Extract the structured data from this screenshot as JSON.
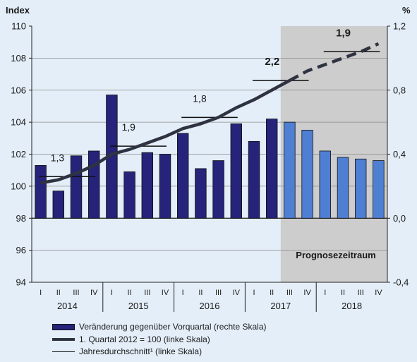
{
  "chart_data": {
    "type": "bar",
    "left_axis_label": "Index",
    "right_axis_label": "%",
    "left_ylim": [
      94,
      110
    ],
    "right_ylim": [
      -0.4,
      1.2
    ],
    "left_ticks": [
      "94",
      "96",
      "98",
      "100",
      "102",
      "104",
      "106",
      "108",
      "110"
    ],
    "right_ticks": [
      "-0,4",
      "0,0",
      "0,4",
      "0,8",
      "1,2"
    ],
    "quarters": [
      "I",
      "II",
      "III",
      "IV",
      "I",
      "II",
      "III",
      "IV",
      "I",
      "II",
      "III",
      "IV",
      "I",
      "II",
      "III",
      "IV",
      "I",
      "II",
      "III",
      "IV"
    ],
    "years": [
      "2014",
      "2015",
      "2016",
      "2017",
      "2018"
    ],
    "forecast_label": "Prognosezeitraum",
    "forecast_start_index": 14,
    "bars": {
      "name": "Veränderung gegenüber Vorquartal (rechte Skala)",
      "values": [
        0.33,
        0.17,
        0.39,
        0.42,
        0.77,
        0.29,
        0.41,
        0.4,
        0.53,
        0.31,
        0.36,
        0.59,
        0.48,
        0.62,
        0.6,
        0.55,
        0.42,
        0.38,
        0.37,
        0.36
      ],
      "color": "#25237a",
      "forecast_color": "#4f7fd2"
    },
    "index_line": {
      "name": "1. Quartal 2012 = 100 (linke Skala)",
      "values": [
        100.2,
        100.4,
        100.8,
        101.3,
        102.0,
        102.3,
        102.7,
        103.1,
        103.6,
        103.9,
        104.3,
        104.9,
        105.4,
        106.0,
        106.6,
        107.2,
        107.6,
        108.0,
        108.4,
        108.9
      ],
      "color": "#2f3341"
    },
    "annual_average": {
      "name": "Jahresdurchschnitt¹ (linke Skala)",
      "values": [
        100.6,
        102.5,
        104.3,
        106.6,
        108.4
      ],
      "labels": [
        "1,3",
        "1,9",
        "1,8",
        "2,2",
        "1,9"
      ]
    }
  },
  "legend": {
    "bars": "Veränderung gegenüber Vorquartal (rechte Skala)",
    "index_line": "1. Quartal 2012 = 100 (linke Skala)",
    "annual_average": "Jahresdurchschnitt¹ (linke Skala)"
  }
}
